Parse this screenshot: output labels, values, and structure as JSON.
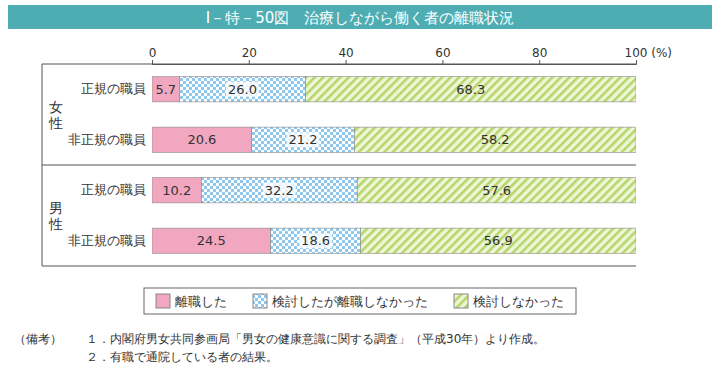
{
  "chart_data": {
    "type": "bar",
    "orientation": "horizontal",
    "stacked": true,
    "data_labels": true,
    "grid": false,
    "legend": "bottom",
    "title": "Ⅰ－特－50図　治療しながら働く者の離職状況",
    "groups": [
      "女性",
      "男性"
    ],
    "categories": [
      "正規の職員",
      "非正規の職員",
      "正規の職員",
      "非正規の職員"
    ],
    "xlim": [
      0,
      100
    ],
    "xticks": [
      0,
      20,
      40,
      60,
      80,
      {
        "value": 100,
        "label": "100 (%)"
      }
    ],
    "series": [
      {
        "name": "離職した",
        "color": "#f2a7c0",
        "values": [
          5.7,
          20.6,
          10.2,
          24.5
        ]
      },
      {
        "name": "検討したが離職しなかった",
        "color": "#8ec8ec",
        "values": [
          26.0,
          21.2,
          32.2,
          18.6
        ],
        "value_labels": [
          "26.0",
          "21.2",
          "32.2",
          "18.6"
        ]
      },
      {
        "name": "検討しなかった",
        "color": "#b5d56a",
        "values": [
          68.3,
          58.2,
          57.6,
          56.9
        ]
      }
    ],
    "notes_label": "（備考）",
    "notes": [
      "１．内閣府男女共同参画局「男女の健康意識に関する調査」（平成30年）より作成。",
      "２．有職で通院している者の結果。"
    ]
  }
}
